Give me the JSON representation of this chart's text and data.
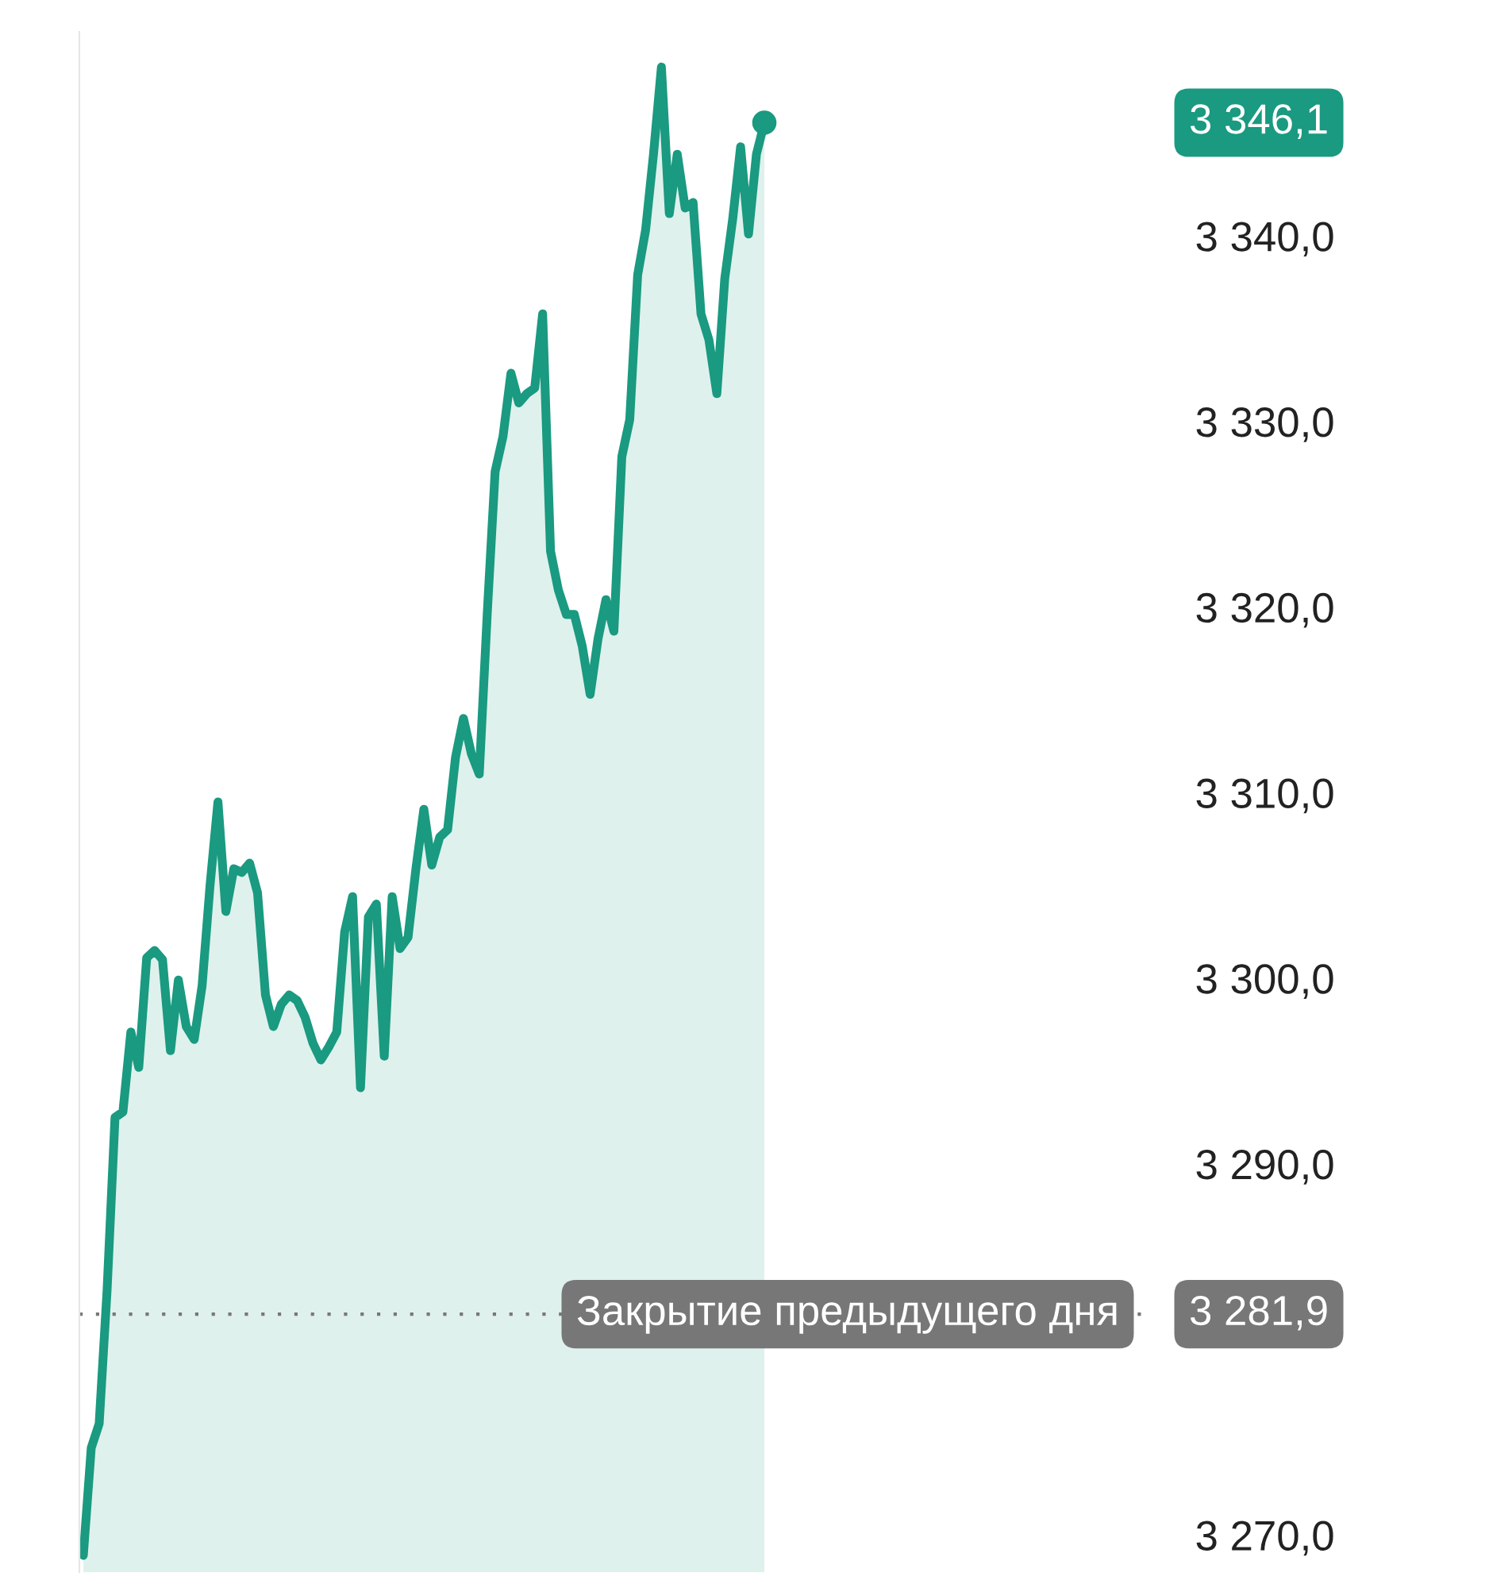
{
  "chart_data": {
    "type": "area",
    "categories": [
      null,
      null,
      null,
      null,
      null,
      null,
      null,
      null,
      null,
      null,
      null,
      null,
      null,
      null,
      null,
      null,
      null,
      null,
      null,
      null,
      null,
      null,
      null,
      null,
      null,
      null,
      null,
      null,
      null,
      null,
      null,
      null,
      null,
      null,
      null,
      null,
      null,
      null,
      null,
      null,
      null,
      null,
      null,
      null,
      null,
      null,
      null,
      null,
      null,
      null,
      null,
      null,
      null,
      null,
      null,
      null,
      null,
      null,
      null,
      null,
      null,
      null,
      null,
      null,
      null,
      null,
      null,
      null,
      null,
      null,
      null,
      null,
      null,
      null,
      null,
      null,
      null,
      null,
      null,
      null,
      null,
      null,
      null,
      null,
      null,
      null,
      null
    ],
    "series": [
      {
        "color": "#1a9a80",
        "values": [
          3268.9,
          3274.7,
          3276.0,
          3283.2,
          3292.5,
          3292.8,
          3297.1,
          3295.2,
          3301.1,
          3301.5,
          3301.0,
          3296.1,
          3299.9,
          3297.4,
          3296.7,
          3299.6,
          3305.0,
          3309.5,
          3303.6,
          3305.9,
          3305.7,
          3306.2,
          3304.6,
          3299.1,
          3297.4,
          3298.6,
          3299.1,
          3298.8,
          3297.9,
          3296.5,
          3295.6,
          3296.3,
          3297.1,
          3302.5,
          3304.4,
          3294.1,
          3303.3,
          3304.0,
          3295.8,
          3304.4,
          3301.6,
          3302.2,
          3305.9,
          3309.1,
          3306.1,
          3307.6,
          3308.0,
          3311.9,
          3314.0,
          3312.1,
          3311.0,
          3319.6,
          3327.3,
          3329.2,
          3332.6,
          3331.0,
          3331.5,
          3331.8,
          3335.8,
          3323.0,
          3320.9,
          3319.6,
          3319.6,
          3317.9,
          3315.3,
          3318.3,
          3320.4,
          3318.7,
          3328.1,
          3330.1,
          3337.9,
          3340.3,
          3344.4,
          3349.1,
          3341.2,
          3344.4,
          3341.5,
          3341.8,
          3335.8,
          3334.4,
          3331.5,
          3337.7,
          3340.9,
          3344.8,
          3340.1,
          3344.4,
          3346.1
        ]
      }
    ],
    "ylim": [
      3268,
      3351
    ],
    "yticks": [
      {
        "value": 3270,
        "label": "3 270,0"
      },
      {
        "value": 3290,
        "label": "3 290,0"
      },
      {
        "value": 3300,
        "label": "3 300,0"
      },
      {
        "value": 3310,
        "label": "3 310,0"
      },
      {
        "value": 3320,
        "label": "3 320,0"
      },
      {
        "value": 3330,
        "label": "3 330,0"
      },
      {
        "value": 3340,
        "label": "3 340,0"
      }
    ],
    "tick_labels": "y",
    "grid": false,
    "legend": false,
    "ref_lines": [
      {
        "axis": "y",
        "value": 3281.9,
        "label": "Закрытие предыдущего дня",
        "color": "#777777",
        "line_style": "dotted"
      }
    ],
    "annotations": [
      "3 346,1",
      "3 281,9"
    ]
  }
}
